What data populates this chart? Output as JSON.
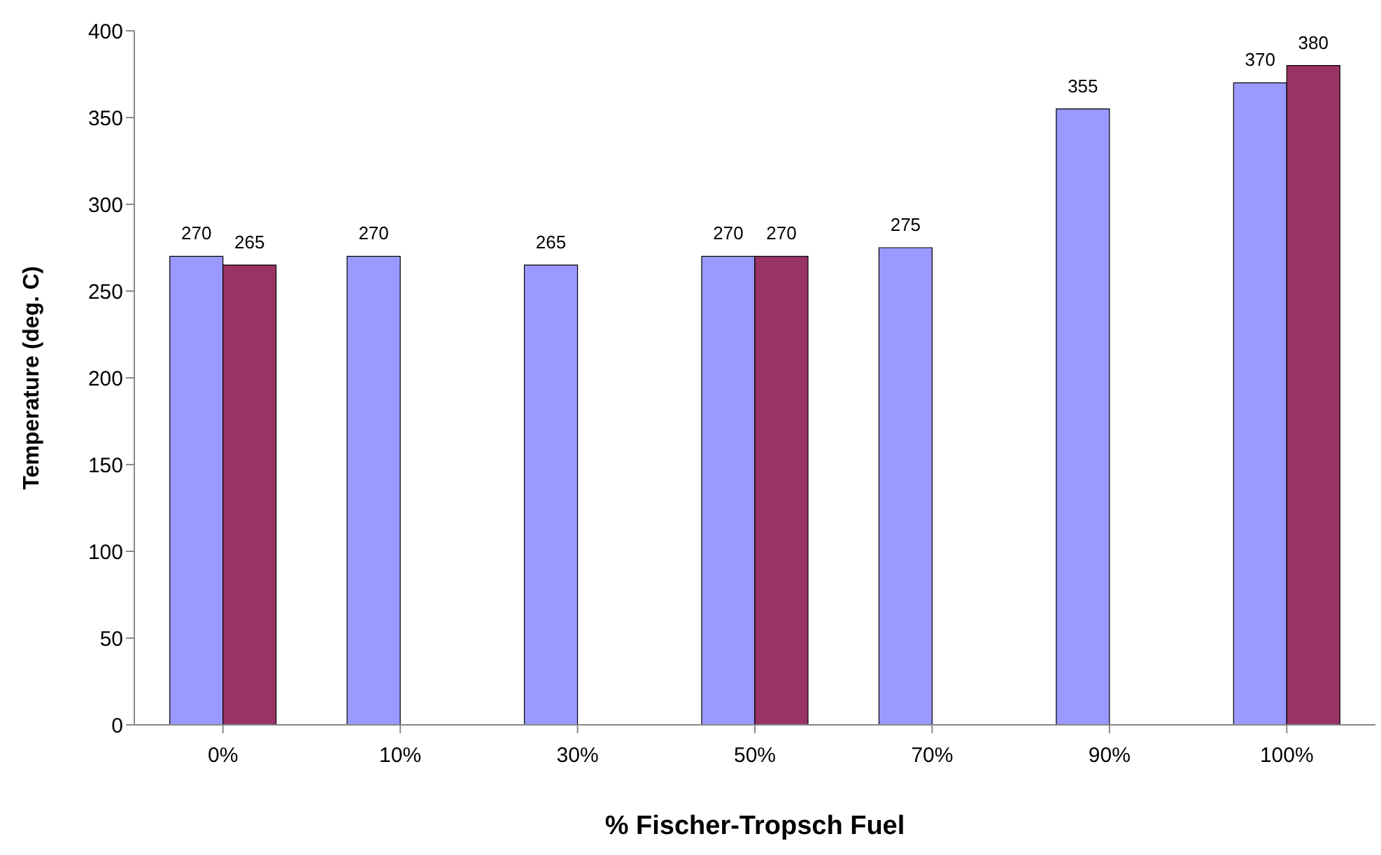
{
  "chart_data": {
    "type": "bar",
    "xlabel": "% Fischer-Tropsch Fuel",
    "ylabel": "Temperature  (deg. C)",
    "categories": [
      "0%",
      "10%",
      "30%",
      "50%",
      "70%",
      "90%",
      "100%"
    ],
    "series": [
      {
        "color": "#9999ff",
        "values": [
          270,
          270,
          265,
          270,
          275,
          355,
          370
        ]
      },
      {
        "color": "#993366",
        "values": [
          265,
          null,
          null,
          270,
          null,
          null,
          380
        ]
      }
    ],
    "ylim": [
      0,
      400
    ],
    "yticks": [
      0,
      50,
      100,
      150,
      200,
      250,
      300,
      350,
      400
    ],
    "grid": false,
    "data_labels": true
  }
}
